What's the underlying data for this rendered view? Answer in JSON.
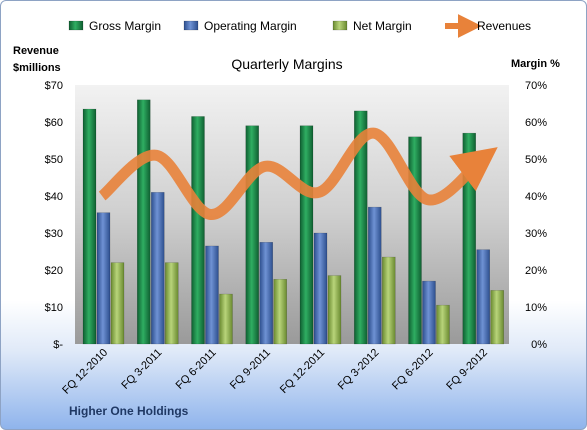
{
  "chart_data": {
    "type": "bar",
    "title": "Quarterly Margins",
    "footer": "Higher One Holdings",
    "left_axis_title": [
      "Revenue",
      "$millions"
    ],
    "right_axis_title": "Margin %",
    "categories": [
      "FQ 12-2010",
      "FQ 3-2011",
      "FQ 6-2011",
      "FQ 9-2011",
      "FQ 12-2011",
      "FQ 3-2012",
      "FQ 6-2012",
      "FQ 9-2012"
    ],
    "left_ticks": [
      "$-",
      "$10",
      "$20",
      "$30",
      "$40",
      "$50",
      "$60",
      "$70"
    ],
    "right_ticks": [
      "0%",
      "10%",
      "20%",
      "30%",
      "40%",
      "50%",
      "60%",
      "70%"
    ],
    "left_ylim": [
      0,
      70
    ],
    "right_ylim": [
      0,
      70
    ],
    "legend_position": "top",
    "grid": false,
    "series": [
      {
        "name": "Gross Margin",
        "axis": "right",
        "kind": "bar",
        "color": "#1f8a4c",
        "values": [
          63.5,
          66,
          61.5,
          59,
          59,
          63,
          56,
          57
        ]
      },
      {
        "name": "Operating Margin",
        "axis": "right",
        "kind": "bar",
        "color": "#4a6fb5",
        "values": [
          35.5,
          41,
          26.5,
          27.5,
          30,
          37,
          17,
          25.5
        ]
      },
      {
        "name": "Net Margin",
        "axis": "right",
        "kind": "bar",
        "color": "#9bbb59",
        "values": [
          22,
          22,
          13.5,
          17.5,
          18.5,
          23.5,
          10.5,
          14.5
        ]
      },
      {
        "name": "Revenues",
        "axis": "left",
        "kind": "line",
        "color": "#e8823a",
        "values": [
          40,
          51,
          35,
          48,
          41,
          57,
          39,
          50
        ]
      }
    ]
  }
}
